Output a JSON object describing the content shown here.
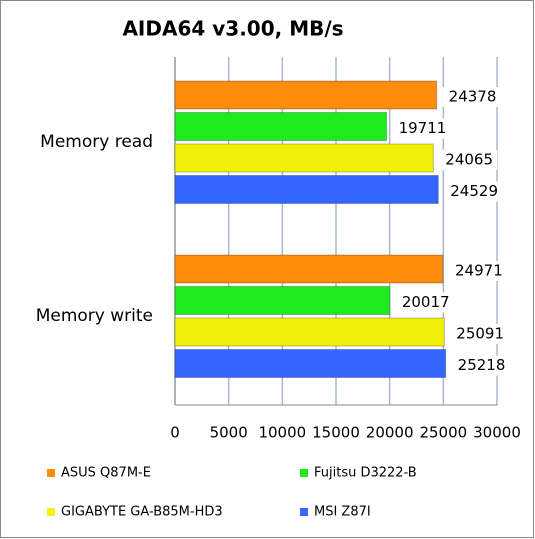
{
  "chart_data": {
    "type": "bar",
    "orientation": "horizontal",
    "title": "AIDA64 v3.00, MB/s",
    "categories": [
      "Memory read",
      "Memory write"
    ],
    "series": [
      {
        "name": "ASUS Q87M-E",
        "color": "#ff8c0a",
        "values": [
          24378,
          24971
        ]
      },
      {
        "name": "Fujitsu D3222-B",
        "color": "#1eeb1e",
        "values": [
          19711,
          20017
        ]
      },
      {
        "name": "GIGABYTE GA-B85M-HD3",
        "color": "#f0f00a",
        "values": [
          24065,
          25091
        ]
      },
      {
        "name": "MSI Z87I",
        "color": "#3366ff",
        "values": [
          24529,
          25218
        ]
      }
    ],
    "xlim": [
      0,
      30000
    ],
    "xticks": [
      0,
      5000,
      10000,
      15000,
      20000,
      25000,
      30000
    ],
    "grid": true
  }
}
